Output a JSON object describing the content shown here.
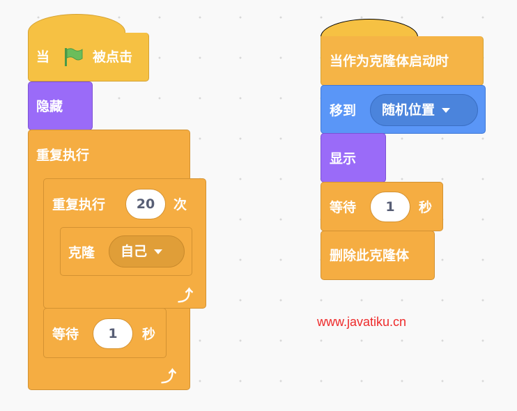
{
  "script_left": {
    "when_flag": {
      "prefix": "当",
      "icon": "green-flag-icon",
      "suffix": "被点击"
    },
    "hide": {
      "label": "隐藏"
    },
    "forever": {
      "label": "重复执行",
      "icon": "loop-arrow-icon"
    },
    "repeat": {
      "label": "重复执行",
      "count": "20",
      "suffix": "次",
      "icon": "loop-arrow-icon"
    },
    "clone": {
      "label": "克隆",
      "target": "自己"
    },
    "wait": {
      "label": "等待",
      "value": "1",
      "unit": "秒"
    }
  },
  "script_right": {
    "when_clone": {
      "label": "当作为克隆体启动时"
    },
    "goto": {
      "label": "移到",
      "target": "随机位置"
    },
    "show": {
      "label": "显示"
    },
    "wait": {
      "label": "等待",
      "value": "1",
      "unit": "秒"
    },
    "delete_clone": {
      "label": "删除此克隆体"
    }
  },
  "watermark": "www.javatiku.cn",
  "colors": {
    "control": "#f5ad42",
    "events": "#f6c143",
    "looks": "#9a6bf8",
    "motion": "#5a96f7",
    "watermark": "#ee2a2a"
  }
}
